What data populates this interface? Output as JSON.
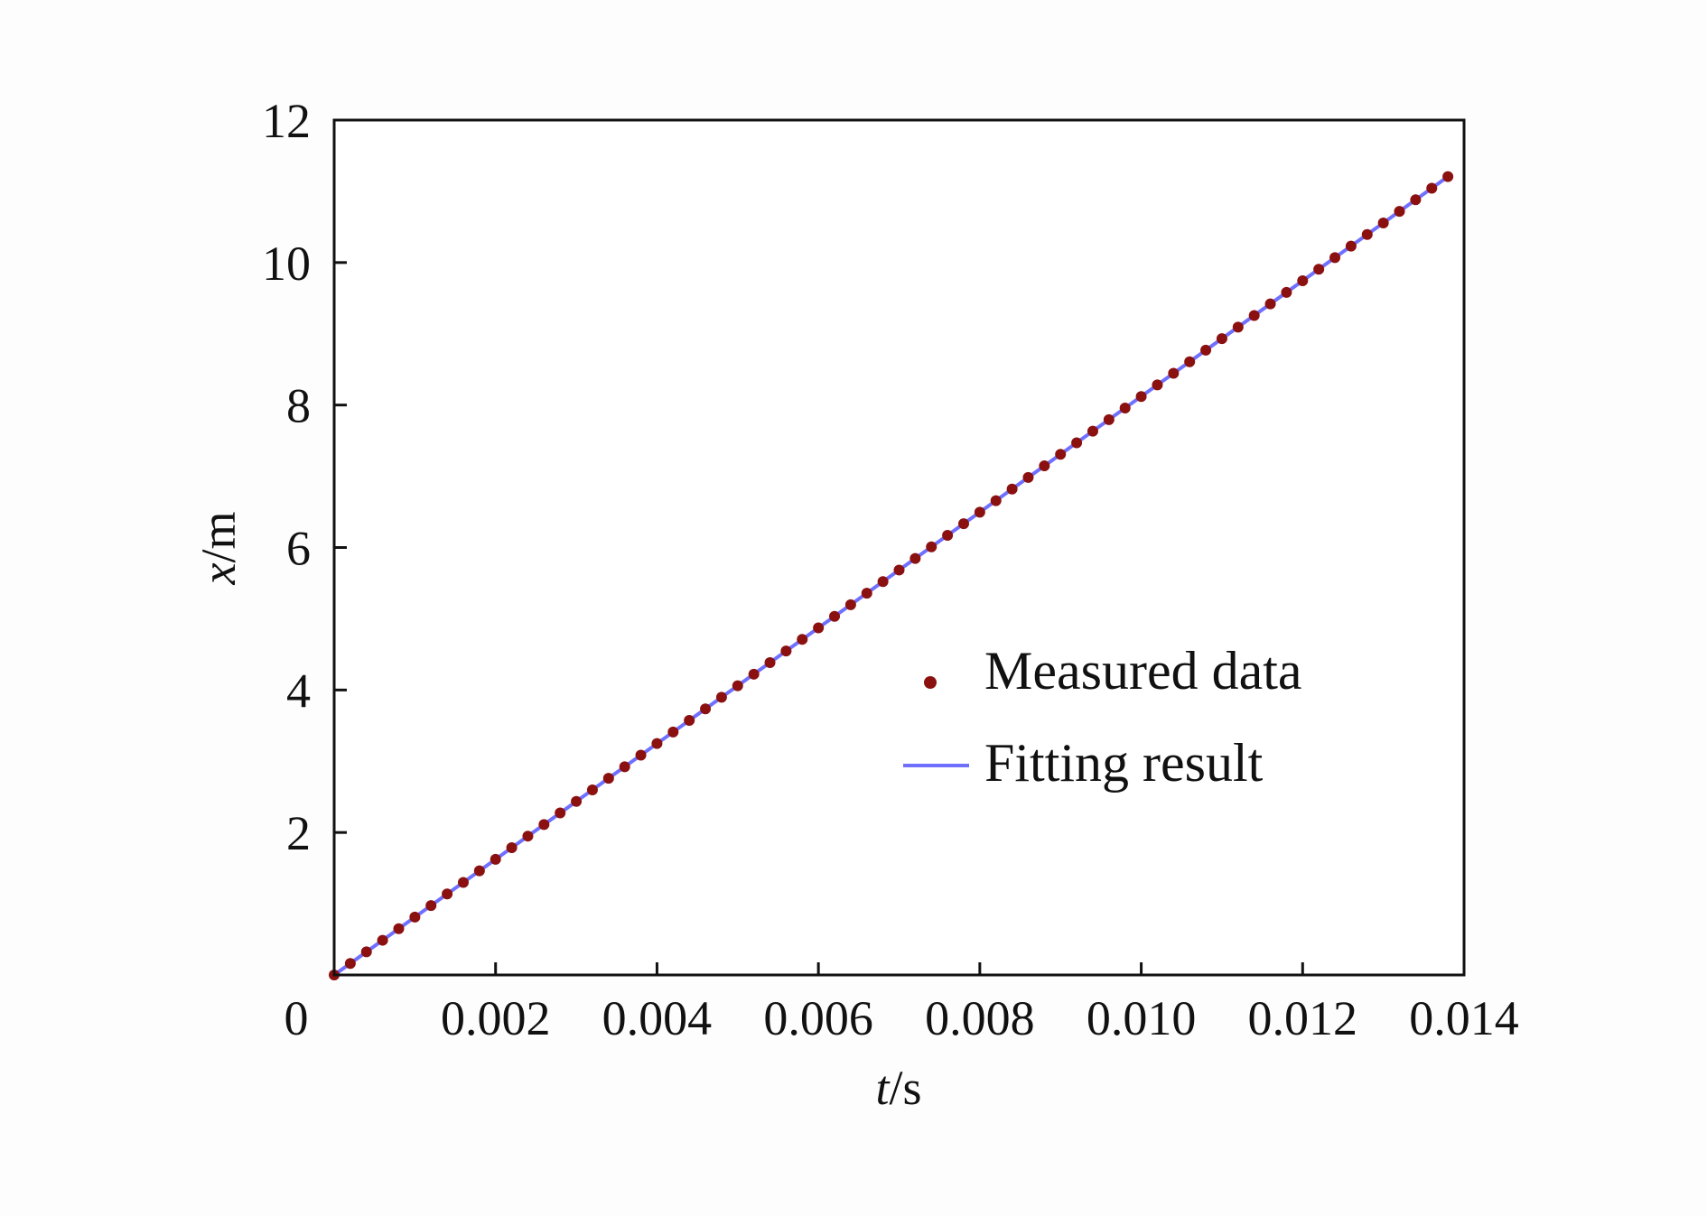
{
  "chart_data": {
    "type": "scatter",
    "x_axis": {
      "label_var": "t",
      "label_unit": "/s",
      "range": [
        0,
        0.014
      ],
      "ticks": [
        0.002,
        0.004,
        0.006,
        0.008,
        0.01,
        0.012,
        0.014
      ],
      "tick_labels": [
        "0.002",
        "0.004",
        "0.006",
        "0.008",
        "0.010",
        "0.012",
        "0.014"
      ],
      "origin_label": "0"
    },
    "y_axis": {
      "label_var": "x",
      "label_unit": "/m",
      "range": [
        0,
        12
      ],
      "ticks": [
        2,
        4,
        6,
        8,
        10,
        12
      ],
      "tick_labels": [
        "2",
        "4",
        "6",
        "8",
        "10",
        "12"
      ]
    },
    "grid": false,
    "legend_position": "right",
    "series": [
      {
        "name": "Measured data",
        "kind": "scatter",
        "color": "#8b1010",
        "x_start": 0,
        "x_step": 0.0002,
        "slope": 812,
        "x": [
          0.0,
          0.0002,
          0.0004,
          0.0006,
          0.0008,
          0.001,
          0.0012,
          0.0014,
          0.0016,
          0.0018,
          0.002,
          0.0022,
          0.0024,
          0.0026,
          0.0028,
          0.003,
          0.0032,
          0.0034,
          0.0036,
          0.0038,
          0.004,
          0.0042,
          0.0044,
          0.0046,
          0.0048,
          0.005,
          0.0052,
          0.0054,
          0.0056,
          0.0058,
          0.006,
          0.0062,
          0.0064,
          0.0066,
          0.0068,
          0.007,
          0.0072,
          0.0074,
          0.0076,
          0.0078,
          0.008,
          0.0082,
          0.0084,
          0.0086,
          0.0088,
          0.009,
          0.0092,
          0.0094,
          0.0096,
          0.0098,
          0.01,
          0.0102,
          0.0104,
          0.0106,
          0.0108,
          0.011,
          0.0112,
          0.0114,
          0.0116,
          0.0118,
          0.012,
          0.0122,
          0.0124,
          0.0126,
          0.0128,
          0.013,
          0.0132,
          0.0134,
          0.0136,
          0.0138
        ],
        "y": [
          0.0,
          0.162,
          0.325,
          0.487,
          0.65,
          0.812,
          0.974,
          1.137,
          1.299,
          1.462,
          1.624,
          1.786,
          1.949,
          2.111,
          2.274,
          2.436,
          2.598,
          2.761,
          2.923,
          3.086,
          3.248,
          3.41,
          3.573,
          3.735,
          3.898,
          4.06,
          4.222,
          4.385,
          4.547,
          4.71,
          4.872,
          5.034,
          5.197,
          5.359,
          5.522,
          5.684,
          5.846,
          6.009,
          6.171,
          6.334,
          6.496,
          6.658,
          6.821,
          6.983,
          7.146,
          7.308,
          7.47,
          7.633,
          7.795,
          7.958,
          8.12,
          8.282,
          8.445,
          8.607,
          8.77,
          8.932,
          9.094,
          9.257,
          9.419,
          9.582,
          9.744,
          9.906,
          10.069,
          10.231,
          10.394,
          10.556,
          10.718,
          10.881,
          11.043,
          11.206
        ]
      },
      {
        "name": "Fitting result",
        "kind": "line",
        "color": "#7070ff",
        "x": [
          0,
          0.0138
        ],
        "y": [
          0,
          11.206
        ]
      }
    ]
  }
}
